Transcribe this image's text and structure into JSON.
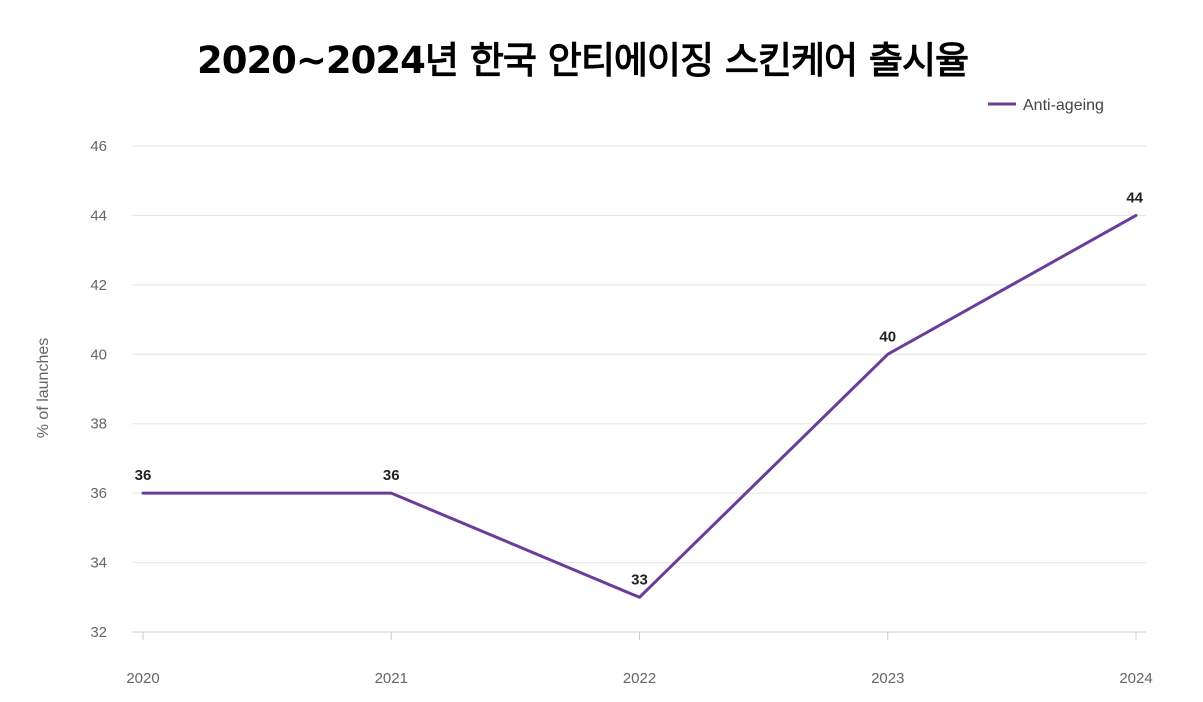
{
  "chart_data": {
    "type": "line",
    "title": "2020~2024년 한국 안티에이징 스킨케어 출시율",
    "xlabel": "",
    "ylabel": "% of launches",
    "categories": [
      "2020",
      "2021",
      "2022",
      "2023",
      "2024"
    ],
    "series": [
      {
        "name": "Anti-ageing",
        "values": [
          36,
          36,
          33,
          40,
          44
        ],
        "color": "#6a3d9a"
      }
    ],
    "ylim": [
      32,
      46
    ],
    "yticks": [
      32,
      34,
      36,
      38,
      40,
      42,
      44,
      46
    ],
    "grid": true,
    "legend_position": "top-right",
    "colors": {
      "line": "#6a3d9a",
      "grid": "#e5e5e5",
      "axis": "#cccccc"
    }
  }
}
